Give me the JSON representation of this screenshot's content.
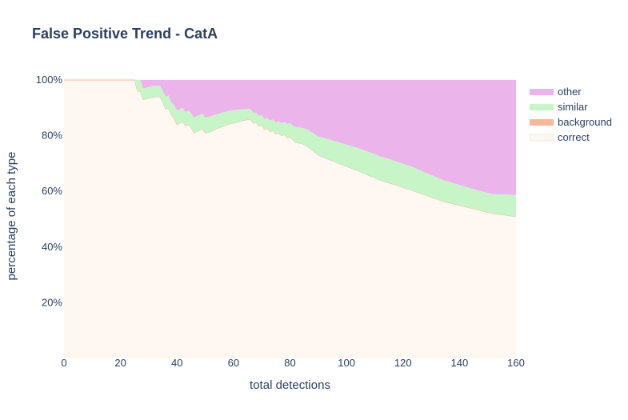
{
  "chart_data": {
    "type": "area",
    "stacking": "percent",
    "title": "False Positive Trend - CatA",
    "xlabel": "total detections",
    "ylabel": "percentage of each type",
    "xlim": [
      0,
      160
    ],
    "ylim": [
      0,
      100
    ],
    "x_ticks": [
      0,
      20,
      40,
      60,
      80,
      100,
      120,
      140,
      160
    ],
    "y_ticks": [
      20,
      40,
      60,
      80,
      100
    ],
    "y_tick_suffix": "%",
    "legend_position": "top-right",
    "x": [
      0,
      22,
      24,
      25,
      26,
      27,
      28,
      30,
      32,
      34,
      35,
      36,
      37,
      38,
      39,
      40,
      41,
      42,
      43,
      44,
      45,
      46,
      47,
      48,
      49,
      50,
      51,
      52,
      54,
      56,
      58,
      60,
      62,
      64,
      66,
      67,
      68,
      69,
      70,
      71,
      72,
      73,
      74,
      75,
      76,
      77,
      78,
      79,
      80,
      81,
      82,
      84,
      86,
      88,
      90,
      92,
      94,
      96,
      98,
      100,
      102,
      104,
      106,
      108,
      110,
      112,
      114,
      116,
      118,
      120,
      122,
      124,
      126,
      128,
      130,
      132,
      134,
      136,
      138,
      140,
      142,
      144,
      146,
      148,
      150,
      152,
      154,
      156,
      158,
      160
    ],
    "series": [
      {
        "name": "correct",
        "color": "#fff8f2",
        "values": [
          100,
          100,
          100,
          100,
          96,
          96,
          93,
          93.5,
          94,
          94,
          92,
          89.5,
          90,
          87.5,
          86,
          84,
          84.5,
          85,
          83.5,
          84,
          83,
          81,
          81.5,
          82,
          82.5,
          81,
          81.3,
          81.5,
          82.5,
          83.3,
          84.1,
          84.6,
          85.1,
          85.6,
          85.9,
          84.5,
          84.8,
          83.5,
          83.9,
          82.2,
          82.6,
          81.4,
          81.8,
          80.6,
          81,
          80,
          80.4,
          79.2,
          79.6,
          78.6,
          77.6,
          77.2,
          76.3,
          74.7,
          73,
          72.2,
          71.4,
          70.6,
          69.8,
          69,
          68.2,
          67.4,
          66.6,
          65.7,
          64.9,
          64,
          63.4,
          62.7,
          62.1,
          61.4,
          60.8,
          60.1,
          59.3,
          58.6,
          57.9,
          57.2,
          56.5,
          56,
          55.5,
          55,
          54.5,
          54,
          53.5,
          53,
          52.5,
          52,
          51.8,
          51.5,
          51.2,
          51
        ]
      },
      {
        "name": "background",
        "color": "#fcb69b",
        "values": [
          0,
          0,
          0,
          0,
          0,
          0,
          0,
          0,
          0,
          0,
          0,
          0,
          0,
          0,
          0,
          0,
          0,
          0,
          0,
          0,
          0,
          0,
          0,
          0,
          0,
          0,
          0,
          0,
          0,
          0,
          0,
          0,
          0,
          0,
          0,
          0,
          0,
          0,
          0,
          0,
          0,
          0,
          0,
          0,
          0,
          0,
          0,
          0,
          0,
          0,
          0,
          0,
          0,
          0,
          0,
          0,
          0,
          0,
          0,
          0,
          0,
          0,
          0,
          0,
          0,
          0,
          0,
          0,
          0,
          0,
          0,
          0,
          0,
          0,
          0,
          0,
          0,
          0,
          0,
          0,
          0,
          0,
          0,
          0,
          0,
          0,
          0,
          0,
          0,
          0
        ]
      },
      {
        "name": "similar",
        "color": "#c8f5c8",
        "values": [
          0,
          0,
          0,
          0,
          4,
          4,
          4,
          4,
          4,
          4,
          4,
          4.5,
          4.5,
          4.5,
          5,
          5,
          5,
          5,
          5,
          5,
          5,
          5.5,
          5.5,
          5.5,
          5.5,
          5.5,
          5.5,
          5.5,
          5.2,
          5,
          4.7,
          4.5,
          4.3,
          4,
          3.7,
          3.7,
          3.5,
          3.5,
          3.5,
          3.8,
          3.8,
          4,
          4,
          4.2,
          4.2,
          4.5,
          4.5,
          5,
          5,
          5,
          5.5,
          5.7,
          6,
          6.3,
          6.7,
          7,
          7.2,
          7.4,
          7.6,
          7.8,
          8,
          8.2,
          8.3,
          8.4,
          8.5,
          8.5,
          8.6,
          8.6,
          8.6,
          8.5,
          8.5,
          8.4,
          8.3,
          8.1,
          8,
          7.8,
          7.6,
          7.5,
          7.4,
          7.3,
          7.2,
          7.1,
          7,
          7,
          7,
          7,
          7.1,
          7.4,
          7.6,
          7.8
        ]
      },
      {
        "name": "other",
        "color": "#ebb4eb",
        "values": [
          0,
          0,
          0,
          0,
          0,
          0,
          3,
          2.5,
          2,
          2,
          4,
          6,
          5.5,
          8,
          9,
          11,
          10.5,
          10,
          11.5,
          11,
          12,
          13.5,
          13,
          12.5,
          12,
          13.5,
          13.2,
          13,
          12.3,
          11.7,
          11.2,
          10.9,
          10.6,
          10.4,
          10.4,
          11.8,
          11.7,
          13,
          12.6,
          14,
          13.6,
          14.6,
          14.2,
          15.2,
          14.8,
          15.5,
          15.1,
          15.8,
          15.4,
          16.4,
          16.9,
          17.1,
          17.7,
          19,
          20.3,
          20.8,
          21.4,
          22,
          22.6,
          23.2,
          23.8,
          24.4,
          25.1,
          25.9,
          26.6,
          27.5,
          28,
          28.7,
          29.3,
          30.1,
          30.7,
          31.5,
          32.4,
          33.3,
          34.1,
          35,
          35.9,
          36.5,
          37.1,
          37.7,
          38.3,
          38.9,
          39.5,
          40,
          40.5,
          41,
          41.1,
          41.1,
          41.2,
          41.2
        ]
      }
    ]
  }
}
